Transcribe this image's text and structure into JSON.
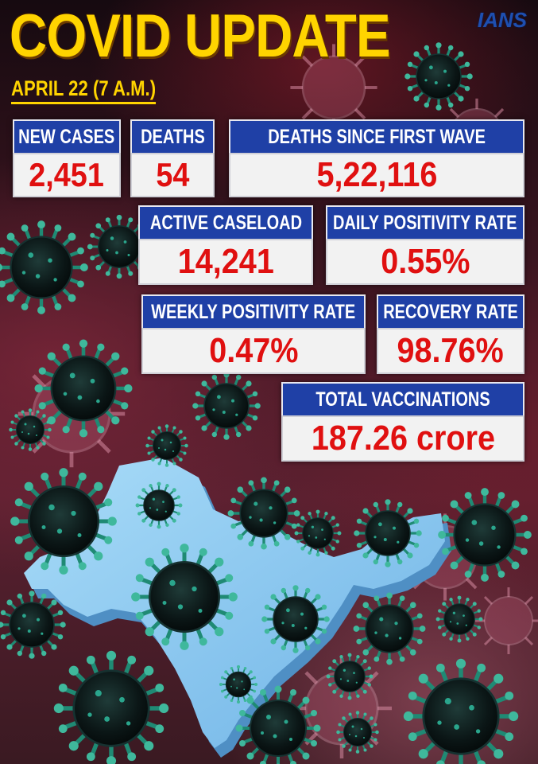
{
  "header": {
    "title": "COVID UPDATE",
    "logo": "IANS",
    "date": "APRIL 22 (7 A.M.)"
  },
  "stats": {
    "new_cases": {
      "label": "NEW CASES",
      "value": "2,451"
    },
    "deaths": {
      "label": "DEATHS",
      "value": "54"
    },
    "deaths_since_first_wave": {
      "label": "DEATHS SINCE FIRST WAVE",
      "value": "5,22,116"
    },
    "active_caseload": {
      "label": "ACTIVE CASELOAD",
      "value": "14,241"
    },
    "daily_positivity_rate": {
      "label": "DAILY POSITIVITY RATE",
      "value": "0.55%"
    },
    "weekly_positivity_rate": {
      "label": "WEEKLY POSITIVITY RATE",
      "value": "0.47%"
    },
    "recovery_rate": {
      "label": "RECOVERY RATE",
      "value": "98.76%"
    },
    "total_vaccinations": {
      "label": "TOTAL VACCINATIONS",
      "value": "187.26 crore"
    }
  },
  "colors": {
    "title": "#ffd400",
    "label_bg": "#1f40a6",
    "value_text": "#e01010",
    "map": "#8ec8f0",
    "virus": "#0d1a1a",
    "virus_spikes": "#2f9e86"
  },
  "illustration": {
    "map_icon": "india-map-icon",
    "virus_icon": "coronavirus-icon"
  }
}
